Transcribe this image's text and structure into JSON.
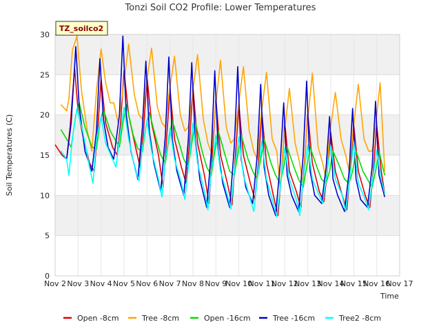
{
  "chart_data": {
    "type": "line",
    "title": "Tonzi Soil CO2 Profile: Lower Temperatures",
    "xlabel": "Time",
    "ylabel": "Soil Temperatures (C)",
    "badge": "TZ_soilco2",
    "xlim": [
      2,
      17
    ],
    "ylim": [
      0,
      30
    ],
    "x_tick_values": [
      2,
      3,
      4,
      5,
      6,
      7,
      8,
      9,
      10,
      11,
      12,
      13,
      14,
      15,
      16,
      17
    ],
    "x_tick_labels": [
      "Nov 2",
      "Nov 3",
      "Nov 4",
      "Nov 5",
      "Nov 6",
      "Nov 7",
      "Nov 8",
      "Nov 9",
      "Nov 10",
      "Nov 11",
      "Nov 12",
      "Nov 13",
      "Nov 14",
      "Nov 15",
      "Nov 16",
      "Nov 17"
    ],
    "y_ticks": [
      0,
      5,
      10,
      15,
      20,
      25,
      30
    ],
    "grid": true,
    "banded_background": true,
    "legend_position": "bottom",
    "series": [
      {
        "name": "Open -8cm",
        "color": "#dd0000",
        "x": [
          2.0,
          2.3,
          2.5,
          2.65,
          2.85,
          3.0,
          3.2,
          3.5,
          3.7,
          3.85,
          4.0,
          4.2,
          4.5,
          4.7,
          4.85,
          5.0,
          5.2,
          5.5,
          5.7,
          5.85,
          6.0,
          6.2,
          6.5,
          6.7,
          6.85,
          7.0,
          7.2,
          7.5,
          7.7,
          7.85,
          8.0,
          8.2,
          8.5,
          8.7,
          8.85,
          9.0,
          9.2,
          9.5,
          9.7,
          9.85,
          10.0,
          10.2,
          10.5,
          10.7,
          10.85,
          11.0,
          11.2,
          11.5,
          11.7,
          11.85,
          12.0,
          12.2,
          12.5,
          12.7,
          12.85,
          13.0,
          13.2,
          13.5,
          13.7,
          13.85,
          14.0,
          14.2,
          14.5,
          14.7,
          14.85,
          15.0,
          15.2,
          15.5,
          15.7,
          15.85,
          16.0,
          16.2,
          16.35
        ],
        "y": [
          16.3,
          15.0,
          14.5,
          18.5,
          25.8,
          20.5,
          17.5,
          14.0,
          13.0,
          18.0,
          24.5,
          19.0,
          16.0,
          15.0,
          19.0,
          25.5,
          20.0,
          16.0,
          13.5,
          18.0,
          24.8,
          19.0,
          15.0,
          11.0,
          17.0,
          23.2,
          17.0,
          13.5,
          11.5,
          16.5,
          23.5,
          16.5,
          12.5,
          9.0,
          15.5,
          22.0,
          15.0,
          11.5,
          8.8,
          15.0,
          21.2,
          15.0,
          11.5,
          9.5,
          14.0,
          20.3,
          14.0,
          10.0,
          7.5,
          12.5,
          19.0,
          13.0,
          10.5,
          8.5,
          14.0,
          20.2,
          14.0,
          10.5,
          9.2,
          13.0,
          17.8,
          13.0,
          10.0,
          8.2,
          13.0,
          18.8,
          13.0,
          10.0,
          8.5,
          13.0,
          18.7,
          13.0,
          10.2
        ]
      },
      {
        "name": "Tree -8cm",
        "color": "#ffa500",
        "x": [
          2.25,
          2.5,
          2.6,
          2.75,
          2.95,
          3.15,
          3.4,
          3.6,
          3.8,
          4.0,
          4.2,
          4.4,
          4.55,
          4.75,
          4.95,
          5.2,
          5.45,
          5.65,
          5.8,
          5.95,
          6.2,
          6.45,
          6.65,
          6.8,
          6.95,
          7.2,
          7.45,
          7.65,
          7.8,
          7.95,
          8.2,
          8.45,
          8.65,
          8.8,
          8.95,
          9.2,
          9.45,
          9.65,
          9.8,
          9.95,
          10.2,
          10.45,
          10.65,
          10.8,
          10.95,
          11.2,
          11.45,
          11.65,
          11.8,
          11.95,
          12.2,
          12.45,
          12.65,
          12.8,
          12.95,
          13.2,
          13.45,
          13.65,
          13.8,
          13.95,
          14.2,
          14.45,
          14.65,
          14.8,
          14.95,
          15.2,
          15.45,
          15.65,
          15.8,
          15.95,
          16.15,
          16.35
        ],
        "y": [
          21.3,
          20.5,
          22.0,
          28.0,
          29.8,
          23.0,
          18.0,
          15.5,
          23.0,
          28.2,
          24.0,
          21.5,
          21.5,
          19.0,
          23.0,
          28.8,
          22.5,
          20.0,
          19.5,
          23.5,
          28.3,
          21.0,
          19.0,
          18.5,
          22.5,
          27.3,
          20.0,
          18.0,
          18.5,
          22.0,
          27.5,
          19.5,
          16.5,
          15.3,
          20.0,
          26.8,
          18.5,
          16.5,
          17.0,
          20.5,
          26.0,
          18.0,
          15.5,
          14.5,
          19.5,
          25.3,
          17.0,
          15.5,
          10.8,
          17.0,
          23.3,
          16.5,
          14.0,
          11.0,
          18.0,
          25.2,
          16.0,
          14.0,
          12.0,
          17.5,
          22.8,
          17.0,
          15.0,
          13.0,
          17.5,
          23.8,
          17.0,
          15.5,
          15.5,
          18.5,
          24.0,
          13.0
        ]
      },
      {
        "name": "Open -16cm",
        "color": "#00dd00",
        "x": [
          2.25,
          2.5,
          2.7,
          2.9,
          3.05,
          3.3,
          3.6,
          3.8,
          3.95,
          4.1,
          4.4,
          4.6,
          4.8,
          4.95,
          5.1,
          5.4,
          5.6,
          5.8,
          5.95,
          6.1,
          6.4,
          6.6,
          6.8,
          6.95,
          7.1,
          7.4,
          7.6,
          7.8,
          7.95,
          8.1,
          8.4,
          8.6,
          8.8,
          8.95,
          9.1,
          9.4,
          9.6,
          9.8,
          9.95,
          10.1,
          10.4,
          10.6,
          10.8,
          10.95,
          11.1,
          11.4,
          11.6,
          11.8,
          11.95,
          12.1,
          12.4,
          12.6,
          12.8,
          12.95,
          13.1,
          13.4,
          13.6,
          13.8,
          13.95,
          14.1,
          14.4,
          14.6,
          14.8,
          14.95,
          15.1,
          15.4,
          15.6,
          15.8,
          15.95,
          16.1,
          16.35
        ],
        "y": [
          18.2,
          17.0,
          16.0,
          20.0,
          21.5,
          18.5,
          16.0,
          15.8,
          19.0,
          20.7,
          18.0,
          17.0,
          16.0,
          19.0,
          21.3,
          17.5,
          15.8,
          15.5,
          18.5,
          20.3,
          17.0,
          15.0,
          14.0,
          17.0,
          19.3,
          16.5,
          14.5,
          13.5,
          16.5,
          19.2,
          15.5,
          13.5,
          12.5,
          15.5,
          18.0,
          15.0,
          13.0,
          12.5,
          15.0,
          17.5,
          14.5,
          13.0,
          12.0,
          14.5,
          17.0,
          14.0,
          12.5,
          11.5,
          13.5,
          16.0,
          13.5,
          12.0,
          11.0,
          13.5,
          16.0,
          13.5,
          12.0,
          11.5,
          13.0,
          15.5,
          13.5,
          12.0,
          11.5,
          13.0,
          15.5,
          13.0,
          12.0,
          11.0,
          13.0,
          15.5,
          12.5
        ]
      },
      {
        "name": "Tree -16cm",
        "color": "#0000cc",
        "x": [
          2.25,
          2.5,
          2.7,
          2.9,
          3.05,
          3.3,
          3.6,
          3.8,
          3.95,
          4.1,
          4.3,
          4.55,
          4.8,
          4.95,
          5.1,
          5.3,
          5.6,
          5.8,
          5.95,
          6.1,
          6.3,
          6.6,
          6.8,
          6.95,
          7.1,
          7.3,
          7.6,
          7.8,
          7.95,
          8.1,
          8.3,
          8.6,
          8.8,
          8.95,
          9.1,
          9.3,
          9.6,
          9.8,
          9.95,
          10.1,
          10.3,
          10.6,
          10.8,
          10.95,
          11.1,
          11.3,
          11.6,
          11.8,
          11.95,
          12.1,
          12.3,
          12.6,
          12.8,
          12.95,
          13.1,
          13.3,
          13.6,
          13.8,
          13.95,
          14.1,
          14.3,
          14.6,
          14.8,
          14.95,
          15.1,
          15.3,
          15.6,
          15.8,
          15.95,
          16.1,
          16.35
        ],
        "y": [
          15.5,
          14.5,
          19.0,
          28.5,
          21.0,
          15.5,
          13.0,
          18.0,
          27.0,
          19.5,
          16.0,
          14.5,
          20.0,
          29.8,
          20.0,
          15.5,
          12.0,
          18.5,
          26.7,
          18.0,
          14.0,
          10.5,
          17.5,
          27.2,
          17.0,
          13.0,
          10.0,
          17.0,
          26.5,
          17.0,
          12.0,
          8.5,
          15.5,
          25.5,
          15.5,
          11.5,
          8.5,
          16.0,
          26.0,
          14.5,
          11.0,
          9.0,
          15.0,
          23.8,
          13.5,
          10.0,
          7.5,
          14.0,
          21.5,
          12.5,
          10.0,
          8.0,
          15.0,
          24.2,
          13.0,
          10.0,
          9.0,
          13.5,
          19.8,
          12.0,
          10.0,
          8.0,
          13.0,
          20.8,
          12.0,
          9.5,
          8.5,
          13.5,
          21.7,
          12.5,
          9.8
        ]
      },
      {
        "name": "Tree2 -8cm",
        "color": "#00ffff",
        "x": [
          2.25,
          2.5,
          2.6,
          2.75,
          2.95,
          3.2,
          3.5,
          3.65,
          3.8,
          4.0,
          4.2,
          4.5,
          4.65,
          4.8,
          5.0,
          5.2,
          5.5,
          5.65,
          5.8,
          6.0,
          6.2,
          6.5,
          6.65,
          6.8,
          7.0,
          7.2,
          7.5,
          7.65,
          7.8,
          8.0,
          8.2,
          8.5,
          8.65,
          8.8,
          9.0,
          9.2,
          9.5,
          9.65,
          9.8,
          10.0,
          10.2,
          10.5,
          10.65,
          10.8,
          11.0,
          11.2,
          11.5,
          11.65,
          11.8,
          12.0,
          12.2,
          12.5,
          12.65,
          12.8,
          13.0,
          13.2,
          13.5,
          13.65,
          13.8,
          14.0,
          14.2,
          14.5,
          14.65,
          14.8,
          15.0,
          15.2,
          15.5,
          15.65,
          15.8,
          16.0,
          16.2,
          16.35
        ],
        "y": [
          15.5,
          14.5,
          12.5,
          17.0,
          20.8,
          18.0,
          13.5,
          11.5,
          17.0,
          19.8,
          16.5,
          14.5,
          13.5,
          17.0,
          21.0,
          17.0,
          13.0,
          11.8,
          16.0,
          19.3,
          15.5,
          12.0,
          9.8,
          14.5,
          18.3,
          14.5,
          11.5,
          9.5,
          13.5,
          19.0,
          14.0,
          10.5,
          8.2,
          13.0,
          17.5,
          13.0,
          10.0,
          8.3,
          13.0,
          17.3,
          12.5,
          9.5,
          8.0,
          12.0,
          16.8,
          12.0,
          9.0,
          7.3,
          11.0,
          15.9,
          12.0,
          9.5,
          7.5,
          12.0,
          16.3,
          12.0,
          10.0,
          9.0,
          12.0,
          16.2,
          12.0,
          10.0,
          8.0,
          11.5,
          16.6,
          11.5,
          9.5,
          8.2,
          11.5,
          15.6,
          12.0,
          10.2
        ]
      }
    ]
  }
}
